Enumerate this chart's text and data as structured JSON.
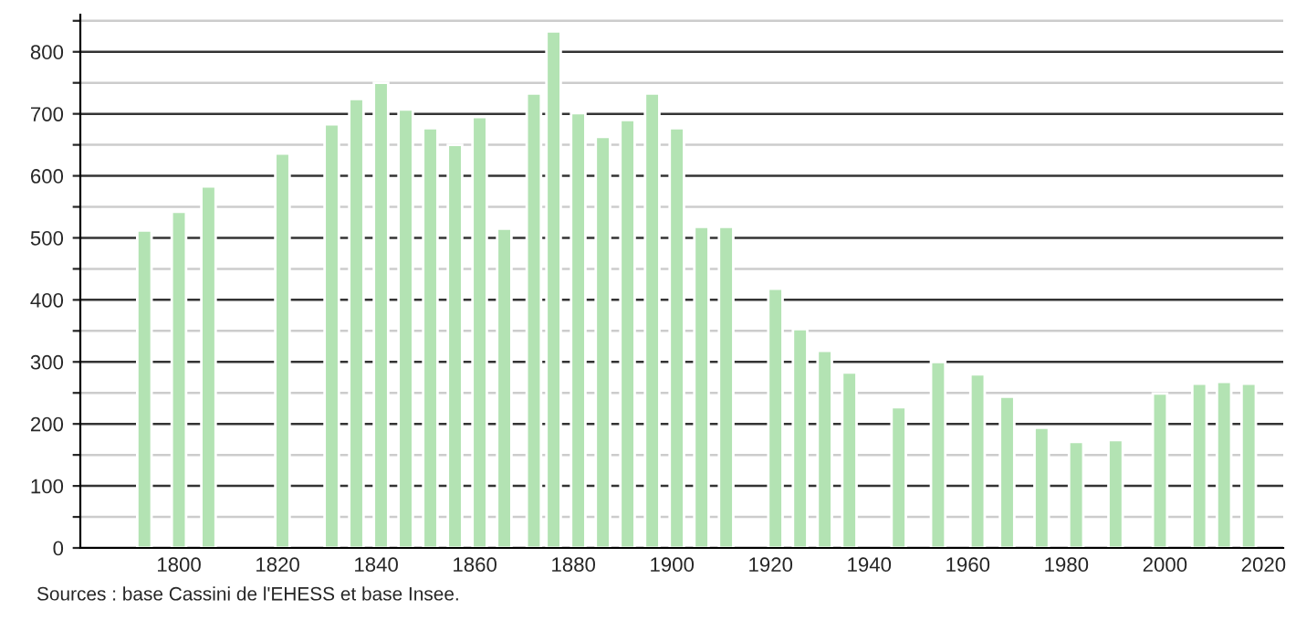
{
  "chart_data": {
    "type": "bar",
    "color": "#b3e3b3",
    "x": [
      1793,
      1800,
      1806,
      1821,
      1831,
      1836,
      1841,
      1846,
      1851,
      1856,
      1861,
      1866,
      1872,
      1876,
      1881,
      1886,
      1891,
      1896,
      1901,
      1906,
      1911,
      1921,
      1926,
      1931,
      1936,
      1946,
      1954,
      1962,
      1968,
      1975,
      1982,
      1990,
      1999,
      2007,
      2012,
      2017
    ],
    "values": [
      512,
      542,
      583,
      636,
      683,
      724,
      750,
      707,
      677,
      650,
      695,
      515,
      733,
      833,
      701,
      663,
      690,
      733,
      677,
      518,
      518,
      418,
      353,
      318,
      283,
      227,
      300,
      280,
      244,
      194,
      171,
      174,
      249,
      265,
      268,
      265
    ],
    "xlim": [
      1780,
      2024
    ],
    "xticks": [
      1800,
      1820,
      1840,
      1860,
      1880,
      1900,
      1920,
      1940,
      1960,
      1980,
      2000,
      2020
    ],
    "ylim": [
      0,
      860
    ],
    "yticks": [
      0,
      {
        "value": 50,
        "label": null
      },
      100,
      {
        "value": 150,
        "label": null
      },
      200,
      {
        "value": 250,
        "label": null
      },
      300,
      {
        "value": 350,
        "label": null
      },
      400,
      {
        "value": 450,
        "label": null
      },
      500,
      {
        "value": 550,
        "label": null
      },
      600,
      {
        "value": 650,
        "label": null
      },
      700,
      {
        "value": 750,
        "label": null
      },
      800,
      {
        "value": 850,
        "label": null
      }
    ],
    "grid": "y",
    "annotations": [
      "Sources : base Cassini de l'EHESS et base Insee."
    ]
  }
}
